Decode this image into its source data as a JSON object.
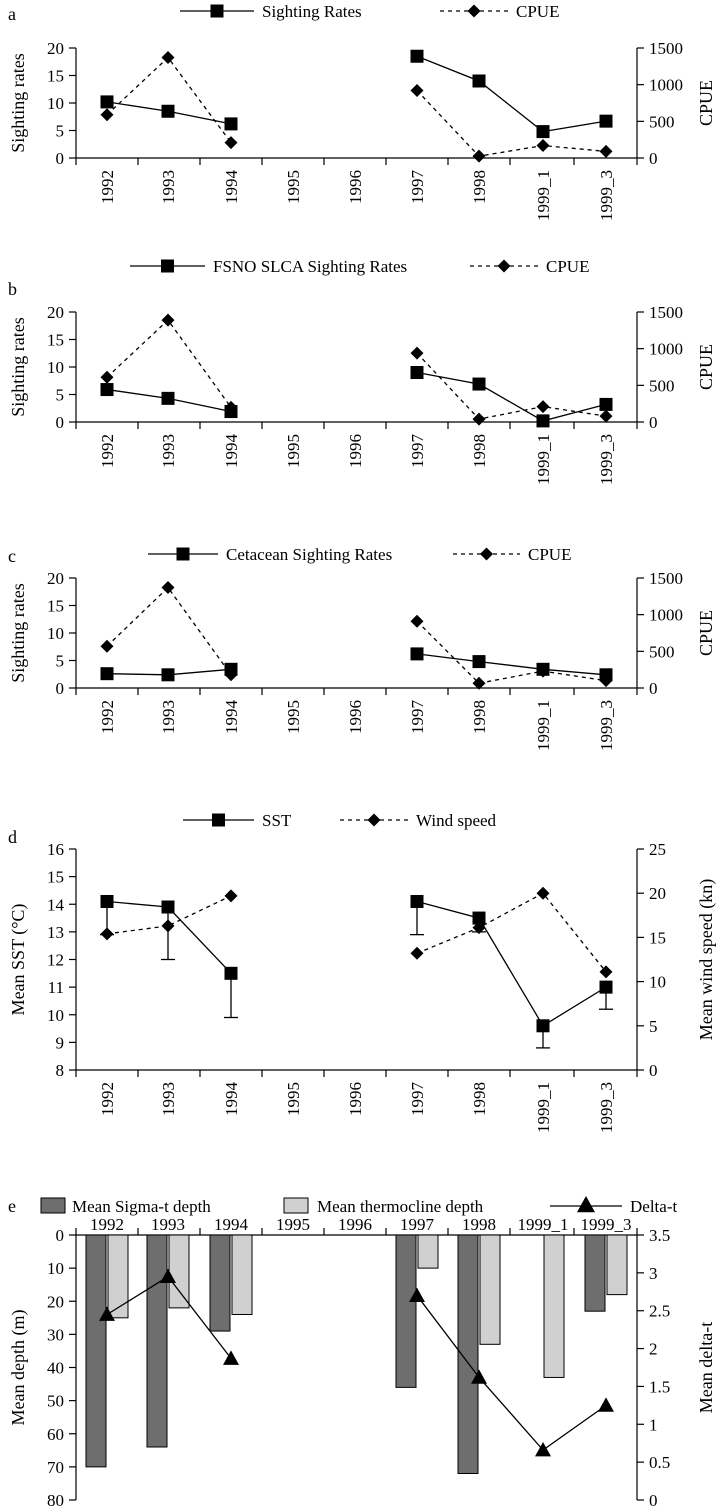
{
  "colors": {
    "ink": "#000000",
    "bar_dark": "#6e6e6e",
    "bar_light": "#d0d0d0"
  },
  "chart_data": [
    {
      "panel": "a",
      "type": "line",
      "categories": [
        "1992",
        "1993",
        "1994",
        "1995",
        "1996",
        "1997",
        "1998",
        "1999_1",
        "1999_3"
      ],
      "ylabel": "Sighting rates",
      "y2label": "CPUE",
      "ylim": [
        0,
        20
      ],
      "yticks": [
        0,
        5,
        10,
        15,
        20
      ],
      "y2lim": [
        0,
        1500
      ],
      "y2ticks": [
        0,
        500,
        1000,
        1500
      ],
      "legend_position": "top",
      "series": [
        {
          "name": "Sighting Rates",
          "axis": "left",
          "marker": "square",
          "style": "solid",
          "values": [
            10.2,
            8.5,
            6.2,
            null,
            null,
            18.5,
            14.0,
            4.8,
            6.7
          ]
        },
        {
          "name": "CPUE",
          "axis": "right",
          "marker": "diamond",
          "style": "dashed",
          "values": [
            590,
            1370,
            210,
            null,
            null,
            920,
            25,
            170,
            90
          ]
        }
      ]
    },
    {
      "panel": "b",
      "type": "line",
      "categories": [
        "1992",
        "1993",
        "1994",
        "1995",
        "1996",
        "1997",
        "1998",
        "1999_1",
        "1999_3"
      ],
      "ylabel": "Sighting rates",
      "y2label": "CPUE",
      "ylim": [
        0,
        20
      ],
      "yticks": [
        0,
        5,
        10,
        15,
        20
      ],
      "y2lim": [
        0,
        1500
      ],
      "y2ticks": [
        0,
        500,
        1000,
        1500
      ],
      "legend_position": "top",
      "series": [
        {
          "name": "FSNO SLCA Sighting Rates",
          "axis": "left",
          "marker": "square",
          "style": "solid",
          "values": [
            5.9,
            4.3,
            1.9,
            null,
            null,
            9.0,
            6.9,
            0.2,
            3.2
          ]
        },
        {
          "name": "CPUE",
          "axis": "right",
          "marker": "diamond",
          "style": "dashed",
          "values": [
            610,
            1390,
            200,
            null,
            null,
            940,
            40,
            210,
            80
          ]
        }
      ]
    },
    {
      "panel": "c",
      "type": "line",
      "categories": [
        "1992",
        "1993",
        "1994",
        "1995",
        "1996",
        "1997",
        "1998",
        "1999_1",
        "1999_3"
      ],
      "ylabel": "Sighting rates",
      "y2label": "CPUE",
      "ylim": [
        0,
        20
      ],
      "yticks": [
        0,
        5,
        10,
        15,
        20
      ],
      "y2lim": [
        0,
        1500
      ],
      "y2ticks": [
        0,
        500,
        1000,
        1500
      ],
      "legend_position": "top",
      "series": [
        {
          "name": "Cetacean Sighting Rates",
          "axis": "left",
          "marker": "square",
          "style": "solid",
          "values": [
            2.6,
            2.4,
            3.4,
            null,
            null,
            6.2,
            4.8,
            3.4,
            2.4
          ]
        },
        {
          "name": "CPUE",
          "axis": "right",
          "marker": "diamond",
          "style": "dashed",
          "values": [
            570,
            1370,
            180,
            null,
            null,
            910,
            65,
            230,
            100
          ]
        }
      ]
    },
    {
      "panel": "d",
      "type": "line",
      "categories": [
        "1992",
        "1993",
        "1994",
        "1995",
        "1996",
        "1997",
        "1998",
        "1999_1",
        "1999_3"
      ],
      "ylabel": "Mean SST (°C)",
      "y2label": "Mean wind speed (kn)",
      "ylim": [
        8,
        16
      ],
      "yticks": [
        8,
        9,
        10,
        11,
        12,
        13,
        14,
        15,
        16
      ],
      "y2lim": [
        0,
        25
      ],
      "y2ticks": [
        0,
        5,
        10,
        15,
        20,
        25
      ],
      "legend_position": "top",
      "series": [
        {
          "name": "SST",
          "axis": "left",
          "marker": "square",
          "style": "solid",
          "values": [
            14.1,
            13.9,
            11.5,
            null,
            null,
            14.1,
            13.5,
            9.6,
            11.0
          ],
          "error_low": [
            12.9,
            12.0,
            9.9,
            null,
            null,
            12.9,
            13.0,
            8.8,
            10.2
          ]
        },
        {
          "name": "Wind speed",
          "axis": "right",
          "marker": "diamond",
          "style": "dashed",
          "values": [
            15.4,
            16.3,
            19.7,
            null,
            null,
            13.2,
            16.1,
            20.0,
            11.1
          ]
        }
      ]
    },
    {
      "panel": "e",
      "type": "bar",
      "categories": [
        "1992",
        "1993",
        "1994",
        "1995",
        "1996",
        "1997",
        "1998",
        "1999_1",
        "1999_3"
      ],
      "ylabel": "Mean depth (m)",
      "y2label": "Mean delta-t",
      "ylim": [
        0,
        80
      ],
      "yticks": [
        0,
        10,
        20,
        30,
        40,
        50,
        60,
        70,
        80
      ],
      "y_inverted": true,
      "y2lim": [
        0,
        3.5
      ],
      "y2ticks": [
        0,
        0.5,
        1,
        1.5,
        2,
        2.5,
        3,
        3.5
      ],
      "legend_position": "top",
      "series": [
        {
          "name": "Mean Sigma-t depth",
          "axis": "left",
          "kind": "bar",
          "values": [
            70,
            64,
            29,
            null,
            null,
            46,
            72,
            null,
            23
          ]
        },
        {
          "name": "Mean thermocline depth",
          "axis": "left",
          "kind": "bar",
          "values": [
            25,
            22,
            24,
            null,
            null,
            10,
            33,
            43,
            18
          ]
        },
        {
          "name": "Delta-t",
          "axis": "right",
          "kind": "line",
          "marker": "triangle",
          "values": [
            2.45,
            2.95,
            1.87,
            null,
            null,
            2.7,
            1.62,
            0.66,
            1.25
          ]
        }
      ]
    }
  ],
  "ytick_labels": {
    "rates": [
      "0",
      "5",
      "10",
      "15",
      "20"
    ],
    "cpue": [
      "0",
      "500",
      "1000",
      "1500"
    ],
    "sst": [
      "8",
      "9",
      "10",
      "11",
      "12",
      "13",
      "14",
      "15",
      "16"
    ],
    "wind": [
      "0",
      "5",
      "10",
      "15",
      "20",
      "25"
    ],
    "depth": [
      "0",
      "10",
      "20",
      "30",
      "40",
      "50",
      "60",
      "70",
      "80"
    ],
    "delta": [
      "0",
      "0.5",
      "1",
      "1.5",
      "2",
      "2.5",
      "3",
      "3.5"
    ]
  }
}
